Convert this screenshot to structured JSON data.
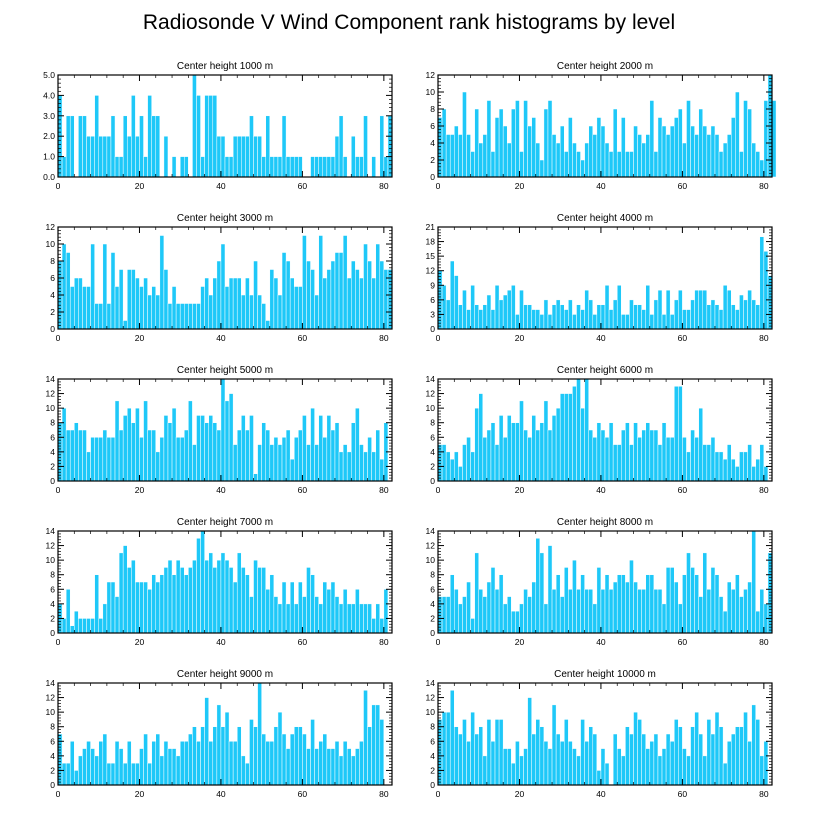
{
  "figure_title": "Radiosonde V Wind Component rank histograms by level",
  "bar_color": "#1ec8f8",
  "chart_data": [
    {
      "type": "bar",
      "title": "Center height 1000 m",
      "xlabel": "",
      "ylabel": "",
      "xlim": [
        0,
        82
      ],
      "ylim": [
        0,
        5
      ],
      "yticks": [
        0,
        1,
        2,
        3,
        4,
        5
      ],
      "ytick_labels": [
        "0.0",
        "1.0",
        "2.0",
        "3.0",
        "4.0",
        "5.0"
      ],
      "xticks": [
        0,
        20,
        40,
        60,
        80
      ],
      "values": [
        4,
        1,
        3,
        3,
        0,
        3,
        3,
        2,
        2,
        4,
        2,
        2,
        2,
        3,
        1,
        1,
        3,
        2,
        4,
        2,
        3,
        1,
        4,
        3,
        3,
        0,
        2,
        0,
        1,
        0,
        1,
        1,
        0,
        5,
        4,
        1,
        4,
        4,
        4,
        2,
        2,
        1,
        1,
        2,
        2,
        2,
        2,
        3,
        2,
        2,
        1,
        3,
        1,
        1,
        1,
        3,
        1,
        1,
        1,
        1,
        0,
        0,
        1,
        1,
        1,
        1,
        1,
        1,
        2,
        3,
        1,
        0,
        2,
        1,
        1,
        3,
        0,
        1,
        0,
        3,
        1,
        3
      ]
    },
    {
      "type": "bar",
      "title": "Center height 2000 m",
      "xlabel": "",
      "ylabel": "",
      "xlim": [
        0,
        82
      ],
      "ylim": [
        0,
        12
      ],
      "yticks": [
        0,
        2,
        4,
        6,
        8,
        10,
        12
      ],
      "xticks": [
        0,
        20,
        40,
        60,
        80
      ],
      "values": [
        7,
        8,
        5,
        5,
        6,
        5,
        10,
        5,
        3,
        8,
        4,
        5,
        9,
        3,
        7,
        8,
        6,
        4,
        8,
        9,
        3,
        9,
        6,
        7,
        4,
        2,
        8,
        9,
        5,
        4,
        6,
        3,
        7,
        4,
        3,
        2,
        4,
        6,
        5,
        7,
        6,
        4,
        3,
        8,
        3,
        7,
        3,
        3,
        6,
        5,
        4,
        5,
        9,
        3,
        7,
        6,
        5,
        6,
        7,
        8,
        4,
        9,
        6,
        5,
        8,
        6,
        5,
        6,
        5,
        3,
        4,
        5,
        7,
        10,
        3,
        9,
        8,
        4,
        3,
        2,
        9,
        12,
        9
      ]
    },
    {
      "type": "bar",
      "title": "Center height 3000 m",
      "xlabel": "",
      "ylabel": "",
      "xlim": [
        0,
        82
      ],
      "ylim": [
        0,
        12
      ],
      "yticks": [
        0,
        2,
        4,
        6,
        8,
        10,
        12
      ],
      "xticks": [
        0,
        20,
        40,
        60,
        80
      ],
      "values": [
        8,
        10,
        9,
        5,
        6,
        6,
        5,
        5,
        10,
        3,
        3,
        10,
        3,
        9,
        5,
        7,
        1,
        7,
        7,
        6,
        5,
        6,
        4,
        5,
        4,
        11,
        7,
        3,
        5,
        3,
        3,
        3,
        3,
        3,
        3,
        5,
        6,
        4,
        6,
        8,
        10,
        5,
        6,
        6,
        6,
        4,
        6,
        4,
        8,
        4,
        3,
        1,
        7,
        6,
        4,
        9,
        8,
        6,
        5,
        5,
        11,
        8,
        7,
        4,
        11,
        6,
        7,
        8,
        9,
        9,
        11,
        6,
        8,
        7,
        6,
        10,
        8,
        6,
        10,
        8,
        7,
        7
      ]
    },
    {
      "type": "bar",
      "title": "Center height 4000 m",
      "xlabel": "",
      "ylabel": "",
      "xlim": [
        0,
        82
      ],
      "ylim": [
        0,
        21
      ],
      "yticks": [
        0,
        3,
        6,
        9,
        12,
        15,
        18,
        21
      ],
      "xticks": [
        0,
        20,
        40,
        60,
        80
      ],
      "values": [
        12,
        9,
        6,
        14,
        11,
        5,
        8,
        4,
        9,
        5,
        4,
        5,
        7,
        4,
        9,
        6,
        7,
        8,
        9,
        3,
        8,
        5,
        5,
        4,
        4,
        3,
        6,
        3,
        5,
        6,
        5,
        4,
        6,
        3,
        5,
        4,
        8,
        6,
        3,
        5,
        5,
        9,
        4,
        6,
        9,
        3,
        3,
        6,
        5,
        5,
        4,
        9,
        3,
        6,
        8,
        3,
        8,
        3,
        6,
        8,
        4,
        4,
        6,
        8,
        8,
        8,
        5,
        6,
        5,
        4,
        9,
        8,
        5,
        4,
        7,
        6,
        8,
        6,
        5,
        19,
        16,
        11
      ]
    },
    {
      "type": "bar",
      "title": "Center height 5000 m",
      "xlabel": "",
      "ylabel": "",
      "xlim": [
        0,
        82
      ],
      "ylim": [
        0,
        14
      ],
      "yticks": [
        0,
        2,
        4,
        6,
        8,
        10,
        12,
        14
      ],
      "xticks": [
        0,
        20,
        40,
        60,
        80
      ],
      "values": [
        8,
        10,
        7,
        7,
        8,
        7,
        7,
        4,
        6,
        6,
        6,
        7,
        6,
        6,
        11,
        7,
        9,
        10,
        8,
        10,
        6,
        11,
        7,
        7,
        4,
        6,
        9,
        8,
        10,
        6,
        6,
        7,
        11,
        5,
        9,
        9,
        8,
        9,
        8,
        7,
        14,
        11,
        12,
        5,
        7,
        9,
        7,
        9,
        1,
        5,
        8,
        7,
        5,
        6,
        5,
        6,
        7,
        3,
        6,
        7,
        9,
        5,
        10,
        5,
        9,
        6,
        9,
        7,
        8,
        4,
        5,
        4,
        8,
        10,
        5,
        4,
        6,
        4,
        7,
        3,
        8
      ]
    },
    {
      "type": "bar",
      "title": "Center height 6000 m",
      "xlabel": "",
      "ylabel": "",
      "xlim": [
        0,
        82
      ],
      "ylim": [
        0,
        14
      ],
      "yticks": [
        0,
        2,
        4,
        6,
        8,
        10,
        12,
        14
      ],
      "xticks": [
        0,
        20,
        40,
        60,
        80
      ],
      "values": [
        5,
        5,
        4,
        3,
        4,
        2,
        5,
        6,
        4,
        10,
        12,
        6,
        7,
        8,
        5,
        9,
        6,
        9,
        8,
        8,
        11,
        7,
        6,
        9,
        7,
        8,
        11,
        7,
        9,
        10,
        12,
        12,
        12,
        13,
        14,
        10,
        14,
        7,
        6,
        8,
        7,
        6,
        8,
        5,
        5,
        7,
        8,
        5,
        8,
        6,
        7,
        8,
        7,
        7,
        5,
        8,
        6,
        6,
        13,
        13,
        6,
        4,
        7,
        6,
        10,
        5,
        5,
        6,
        4,
        4,
        3,
        5,
        3,
        2,
        4,
        4,
        5,
        2,
        3,
        5,
        2
      ]
    },
    {
      "type": "bar",
      "title": "Center height 7000 m",
      "xlabel": "",
      "ylabel": "",
      "xlim": [
        0,
        82
      ],
      "ylim": [
        0,
        14
      ],
      "yticks": [
        0,
        2,
        4,
        6,
        8,
        10,
        12,
        14
      ],
      "xticks": [
        0,
        20,
        40,
        60,
        80
      ],
      "values": [
        4,
        2,
        6,
        1,
        3,
        2,
        2,
        2,
        2,
        8,
        2,
        4,
        7,
        7,
        5,
        11,
        12,
        9,
        10,
        7,
        7,
        7,
        6,
        8,
        7,
        8,
        9,
        10,
        8,
        10,
        9,
        8,
        9,
        10,
        13,
        14,
        10,
        11,
        9,
        10,
        11,
        10,
        9,
        7,
        11,
        9,
        8,
        5,
        10,
        9,
        9,
        6,
        8,
        5,
        4,
        7,
        4,
        7,
        4,
        7,
        5,
        9,
        8,
        5,
        4,
        7,
        6,
        7,
        5,
        4,
        6,
        4,
        4,
        6,
        4,
        4,
        4,
        2,
        4,
        2,
        6
      ]
    },
    {
      "type": "bar",
      "title": "Center height 8000 m",
      "xlabel": "",
      "ylabel": "",
      "xlim": [
        0,
        82
      ],
      "ylim": [
        0,
        14
      ],
      "yticks": [
        0,
        2,
        4,
        6,
        8,
        10,
        12,
        14
      ],
      "xticks": [
        0,
        20,
        40,
        60,
        80
      ],
      "values": [
        5,
        5,
        5,
        8,
        6,
        4,
        5,
        7,
        2,
        11,
        6,
        5,
        7,
        9,
        6,
        8,
        4,
        5,
        3,
        3,
        4,
        6,
        5,
        7,
        13,
        11,
        4,
        12,
        6,
        8,
        5,
        9,
        6,
        10,
        6,
        8,
        6,
        6,
        4,
        9,
        6,
        8,
        6,
        7,
        8,
        8,
        7,
        10,
        7,
        6,
        6,
        8,
        8,
        6,
        6,
        4,
        9,
        9,
        7,
        4,
        8,
        11,
        9,
        8,
        5,
        11,
        6,
        9,
        8,
        5,
        3,
        7,
        6,
        8,
        5,
        6,
        7,
        14,
        3,
        6,
        4,
        11
      ]
    },
    {
      "type": "bar",
      "title": "Center height 9000 m",
      "xlabel": "",
      "ylabel": "",
      "xlim": [
        0,
        82
      ],
      "ylim": [
        0,
        14
      ],
      "yticks": [
        0,
        2,
        4,
        6,
        8,
        10,
        12,
        14
      ],
      "xticks": [
        0,
        20,
        40,
        60,
        80
      ],
      "values": [
        7,
        3,
        3,
        6,
        2,
        4,
        5,
        6,
        5,
        4,
        6,
        7,
        3,
        3,
        6,
        5,
        3,
        6,
        3,
        3,
        5,
        7,
        3,
        6,
        7,
        4,
        6,
        5,
        5,
        4,
        6,
        6,
        7,
        8,
        6,
        8,
        12,
        6,
        8,
        11,
        8,
        10,
        6,
        6,
        8,
        4,
        3,
        9,
        8,
        14,
        7,
        6,
        6,
        8,
        10,
        7,
        5,
        7,
        8,
        8,
        7,
        5,
        9,
        5,
        6,
        7,
        5,
        5,
        6,
        4,
        6,
        5,
        4,
        5,
        6,
        13,
        8,
        11,
        11,
        9
      ]
    },
    {
      "type": "bar",
      "title": "Center height 10000 m",
      "xlabel": "",
      "ylabel": "",
      "xlim": [
        0,
        82
      ],
      "ylim": [
        0,
        14
      ],
      "yticks": [
        0,
        2,
        4,
        6,
        8,
        10,
        12,
        14
      ],
      "xticks": [
        0,
        20,
        40,
        60,
        80
      ],
      "values": [
        9,
        10,
        10,
        13,
        8,
        7,
        9,
        6,
        10,
        7,
        8,
        4,
        9,
        6,
        9,
        9,
        5,
        5,
        3,
        6,
        4,
        5,
        12,
        7,
        9,
        8,
        6,
        5,
        11,
        7,
        6,
        9,
        6,
        5,
        4,
        9,
        6,
        8,
        7,
        2,
        5,
        3,
        0,
        7,
        5,
        4,
        8,
        7,
        10,
        9,
        7,
        5,
        6,
        7,
        4,
        5,
        7,
        6,
        9,
        8,
        5,
        4,
        8,
        10,
        7,
        4,
        9,
        7,
        10,
        8,
        3,
        6,
        7,
        8,
        8,
        10,
        6,
        11,
        9,
        4,
        6
      ]
    }
  ]
}
